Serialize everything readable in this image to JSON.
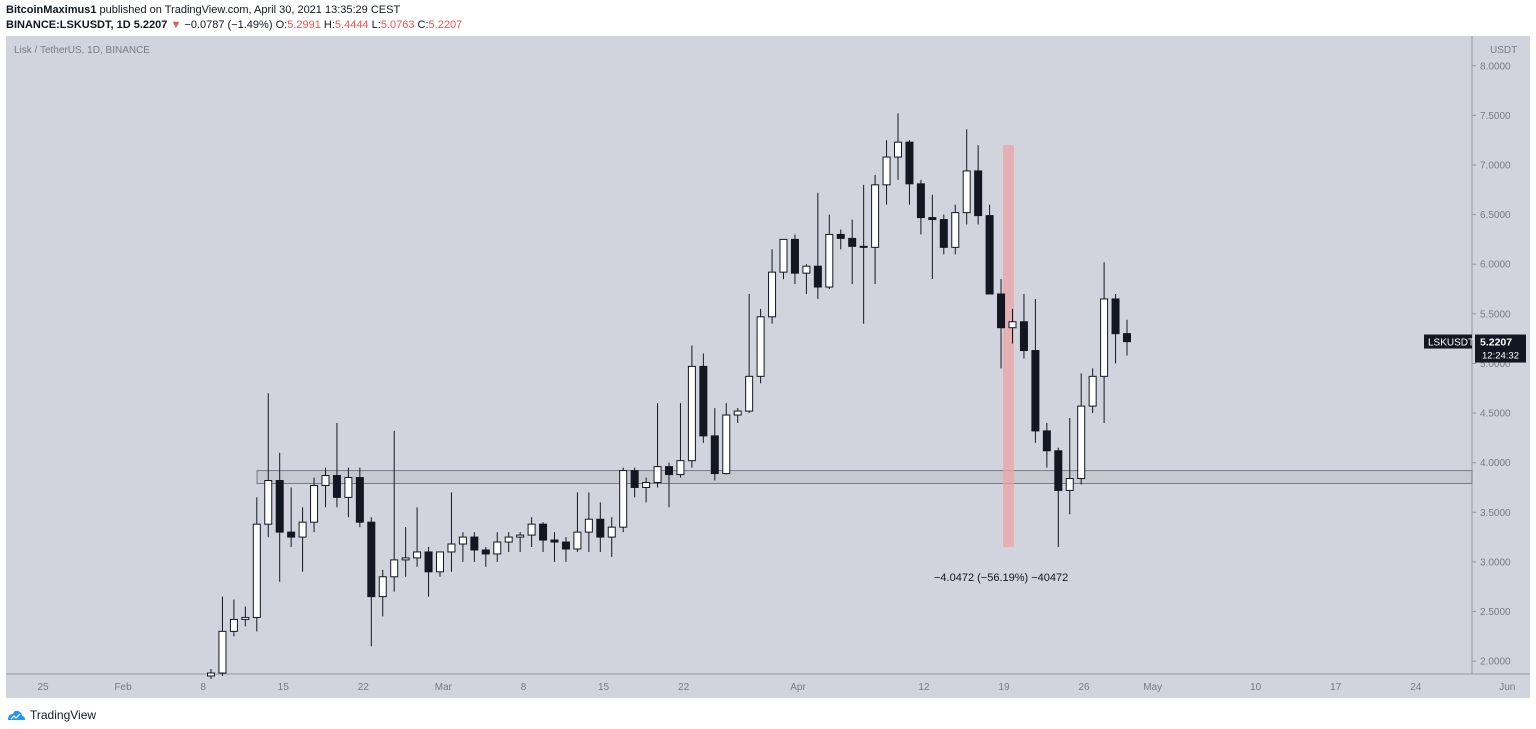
{
  "header": {
    "author": "BitcoinMaximus1",
    "published_text": "published on TradingView.com, April 30, 2021 13:35:29 CEST",
    "symbol_line": "BINANCE:LSKUSDT, 1D",
    "last_price": "5.2207",
    "change_arrow": "▼",
    "change": "−0.0787 (−1.49%)",
    "o_label": "O:",
    "o_value": "5.2991",
    "h_label": "H:",
    "h_value": "5.4444",
    "l_label": "L:",
    "l_value": "5.0763",
    "c_label": "C:",
    "c_value": "5.2207"
  },
  "footer": {
    "brand": "TradingView"
  },
  "chart_data": {
    "type": "candlestick",
    "title": "Lisk / TetherUS, 1D, BINANCE",
    "currency_label": "USDT",
    "y_range": [
      1.87,
      8.3
    ],
    "y_ticks": [
      "8.0000",
      "7.5000",
      "7.0000",
      "6.5000",
      "6.0000",
      "5.5000",
      "5.0000",
      "4.5000",
      "4.0000",
      "3.5000",
      "3.0000",
      "2.5000",
      "2.0000"
    ],
    "x_ticks": [
      {
        "label": "25",
        "day": 0
      },
      {
        "label": "Feb",
        "day": 7
      },
      {
        "label": "8",
        "day": 14
      },
      {
        "label": "15",
        "day": 21
      },
      {
        "label": "22",
        "day": 28
      },
      {
        "label": "Mar",
        "day": 35
      },
      {
        "label": "8",
        "day": 42
      },
      {
        "label": "15",
        "day": 49
      },
      {
        "label": "22",
        "day": 56
      },
      {
        "label": "Apr",
        "day": 66
      },
      {
        "label": "12",
        "day": 77
      },
      {
        "label": "19",
        "day": 84
      },
      {
        "label": "26",
        "day": 91
      },
      {
        "label": "May",
        "day": 97
      },
      {
        "label": "10",
        "day": 106
      },
      {
        "label": "17",
        "day": 113
      },
      {
        "label": "24",
        "day": 120
      },
      {
        "label": "Jun",
        "day": 128
      }
    ],
    "price_label": {
      "symbol": "LSKUSDT",
      "price": "5.2207",
      "countdown": "12:24:32",
      "value": 5.2207
    },
    "support_zone": {
      "from": 3.79,
      "to": 3.92
    },
    "measure": {
      "text": "−4.0472 (−56.19%) −40472",
      "from_day": 85.2,
      "to_day": 85.8,
      "low": 3.15,
      "high": 7.2
    },
    "colors": {
      "background": "#d1d4dc",
      "up_body": "#ffffff",
      "down_body": "#131722",
      "wick": "#131722",
      "measure": "#e9a5a5",
      "price_tag": "#131722"
    },
    "candles": [
      {
        "o": 1.85,
        "h": 1.92,
        "l": 1.82,
        "c": 1.88
      },
      {
        "o": 1.88,
        "h": 2.65,
        "l": 1.85,
        "c": 2.3
      },
      {
        "o": 2.3,
        "h": 2.62,
        "l": 2.25,
        "c": 2.42
      },
      {
        "o": 2.42,
        "h": 2.55,
        "l": 2.35,
        "c": 2.44
      },
      {
        "o": 2.44,
        "h": 3.65,
        "l": 2.3,
        "c": 3.38
      },
      {
        "o": 3.38,
        "h": 4.7,
        "l": 3.25,
        "c": 3.82
      },
      {
        "o": 3.82,
        "h": 4.1,
        "l": 2.8,
        "c": 3.3
      },
      {
        "o": 3.3,
        "h": 3.75,
        "l": 3.15,
        "c": 3.25
      },
      {
        "o": 3.25,
        "h": 3.55,
        "l": 2.9,
        "c": 3.4
      },
      {
        "o": 3.4,
        "h": 3.85,
        "l": 3.3,
        "c": 3.77
      },
      {
        "o": 3.77,
        "h": 3.95,
        "l": 3.55,
        "c": 3.87
      },
      {
        "o": 3.87,
        "h": 4.4,
        "l": 3.55,
        "c": 3.65
      },
      {
        "o": 3.65,
        "h": 3.95,
        "l": 3.45,
        "c": 3.85
      },
      {
        "o": 3.85,
        "h": 3.95,
        "l": 3.35,
        "c": 3.4
      },
      {
        "o": 3.4,
        "h": 3.45,
        "l": 2.15,
        "c": 2.65
      },
      {
        "o": 2.65,
        "h": 2.92,
        "l": 2.45,
        "c": 2.85
      },
      {
        "o": 2.85,
        "h": 4.32,
        "l": 2.7,
        "c": 3.02
      },
      {
        "o": 3.02,
        "h": 3.35,
        "l": 2.85,
        "c": 3.04
      },
      {
        "o": 3.04,
        "h": 3.55,
        "l": 2.95,
        "c": 3.1
      },
      {
        "o": 3.1,
        "h": 3.15,
        "l": 2.65,
        "c": 2.9
      },
      {
        "o": 2.9,
        "h": 3.1,
        "l": 2.85,
        "c": 3.1
      },
      {
        "o": 3.1,
        "h": 3.7,
        "l": 2.9,
        "c": 3.18
      },
      {
        "o": 3.18,
        "h": 3.3,
        "l": 3.0,
        "c": 3.25
      },
      {
        "o": 3.25,
        "h": 3.3,
        "l": 3.0,
        "c": 3.12
      },
      {
        "o": 3.12,
        "h": 3.15,
        "l": 2.95,
        "c": 3.08
      },
      {
        "o": 3.08,
        "h": 3.3,
        "l": 3.0,
        "c": 3.2
      },
      {
        "o": 3.2,
        "h": 3.3,
        "l": 3.1,
        "c": 3.25
      },
      {
        "o": 3.25,
        "h": 3.3,
        "l": 3.1,
        "c": 3.27
      },
      {
        "o": 3.27,
        "h": 3.45,
        "l": 3.15,
        "c": 3.38
      },
      {
        "o": 3.38,
        "h": 3.4,
        "l": 3.1,
        "c": 3.22
      },
      {
        "o": 3.22,
        "h": 3.3,
        "l": 3.0,
        "c": 3.2
      },
      {
        "o": 3.2,
        "h": 3.25,
        "l": 3.0,
        "c": 3.13
      },
      {
        "o": 3.13,
        "h": 3.7,
        "l": 3.1,
        "c": 3.3
      },
      {
        "o": 3.3,
        "h": 3.7,
        "l": 3.1,
        "c": 3.43
      },
      {
        "o": 3.43,
        "h": 3.6,
        "l": 3.1,
        "c": 3.25
      },
      {
        "o": 3.25,
        "h": 3.45,
        "l": 3.05,
        "c": 3.35
      },
      {
        "o": 3.35,
        "h": 3.95,
        "l": 3.3,
        "c": 3.92
      },
      {
        "o": 3.92,
        "h": 3.95,
        "l": 3.65,
        "c": 3.75
      },
      {
        "o": 3.75,
        "h": 3.85,
        "l": 3.6,
        "c": 3.8
      },
      {
        "o": 3.8,
        "h": 4.6,
        "l": 3.75,
        "c": 3.96
      },
      {
        "o": 3.96,
        "h": 4.0,
        "l": 3.55,
        "c": 3.88
      },
      {
        "o": 3.88,
        "h": 4.6,
        "l": 3.85,
        "c": 4.02
      },
      {
        "o": 4.02,
        "h": 5.18,
        "l": 3.95,
        "c": 4.97
      },
      {
        "o": 4.97,
        "h": 5.1,
        "l": 4.2,
        "c": 4.27
      },
      {
        "o": 4.27,
        "h": 4.55,
        "l": 3.82,
        "c": 3.89
      },
      {
        "o": 3.89,
        "h": 4.6,
        "l": 3.88,
        "c": 4.48
      },
      {
        "o": 4.48,
        "h": 4.55,
        "l": 4.4,
        "c": 4.52
      },
      {
        "o": 4.52,
        "h": 5.7,
        "l": 4.5,
        "c": 4.87
      },
      {
        "o": 4.87,
        "h": 5.55,
        "l": 4.8,
        "c": 5.47
      },
      {
        "o": 5.47,
        "h": 6.15,
        "l": 5.4,
        "c": 5.92
      },
      {
        "o": 5.92,
        "h": 6.25,
        "l": 5.85,
        "c": 6.25
      },
      {
        "o": 6.25,
        "h": 6.3,
        "l": 5.8,
        "c": 5.91
      },
      {
        "o": 5.91,
        "h": 6.0,
        "l": 5.7,
        "c": 5.98
      },
      {
        "o": 5.98,
        "h": 6.72,
        "l": 5.65,
        "c": 5.77
      },
      {
        "o": 5.77,
        "h": 6.5,
        "l": 5.75,
        "c": 6.3
      },
      {
        "o": 6.3,
        "h": 6.35,
        "l": 6.15,
        "c": 6.26
      },
      {
        "o": 6.26,
        "h": 6.45,
        "l": 5.8,
        "c": 6.18
      },
      {
        "o": 6.18,
        "h": 6.8,
        "l": 5.4,
        "c": 6.17
      },
      {
        "o": 6.17,
        "h": 6.9,
        "l": 5.8,
        "c": 6.8
      },
      {
        "o": 6.8,
        "h": 7.25,
        "l": 6.6,
        "c": 7.08
      },
      {
        "o": 7.08,
        "h": 7.52,
        "l": 6.85,
        "c": 7.23
      },
      {
        "o": 7.23,
        "h": 7.25,
        "l": 6.6,
        "c": 6.81
      },
      {
        "o": 6.81,
        "h": 6.85,
        "l": 6.3,
        "c": 6.47
      },
      {
        "o": 6.47,
        "h": 6.7,
        "l": 5.85,
        "c": 6.45
      },
      {
        "o": 6.45,
        "h": 6.5,
        "l": 6.1,
        "c": 6.17
      },
      {
        "o": 6.17,
        "h": 6.6,
        "l": 6.1,
        "c": 6.52
      },
      {
        "o": 6.52,
        "h": 7.36,
        "l": 6.4,
        "c": 6.94
      },
      {
        "o": 6.94,
        "h": 7.2,
        "l": 6.4,
        "c": 6.49
      },
      {
        "o": 6.49,
        "h": 6.6,
        "l": 5.7,
        "c": 5.7
      },
      {
        "o": 5.7,
        "h": 5.85,
        "l": 4.95,
        "c": 5.36
      },
      {
        "o": 5.36,
        "h": 5.55,
        "l": 5.2,
        "c": 5.42
      },
      {
        "o": 5.42,
        "h": 5.7,
        "l": 5.05,
        "c": 5.13
      },
      {
        "o": 5.13,
        "h": 5.65,
        "l": 4.2,
        "c": 4.32
      },
      {
        "o": 4.32,
        "h": 4.4,
        "l": 3.95,
        "c": 4.12
      },
      {
        "o": 4.12,
        "h": 4.15,
        "l": 3.15,
        "c": 3.72
      },
      {
        "o": 3.72,
        "h": 4.45,
        "l": 3.48,
        "c": 3.84
      },
      {
        "o": 3.84,
        "h": 4.9,
        "l": 3.78,
        "c": 4.57
      },
      {
        "o": 4.57,
        "h": 4.95,
        "l": 4.5,
        "c": 4.87
      },
      {
        "o": 4.87,
        "h": 6.02,
        "l": 4.4,
        "c": 5.65
      },
      {
        "o": 5.65,
        "h": 5.7,
        "l": 5.0,
        "c": 5.3
      },
      {
        "o": 5.3,
        "h": 5.44,
        "l": 5.08,
        "c": 5.22
      }
    ]
  }
}
